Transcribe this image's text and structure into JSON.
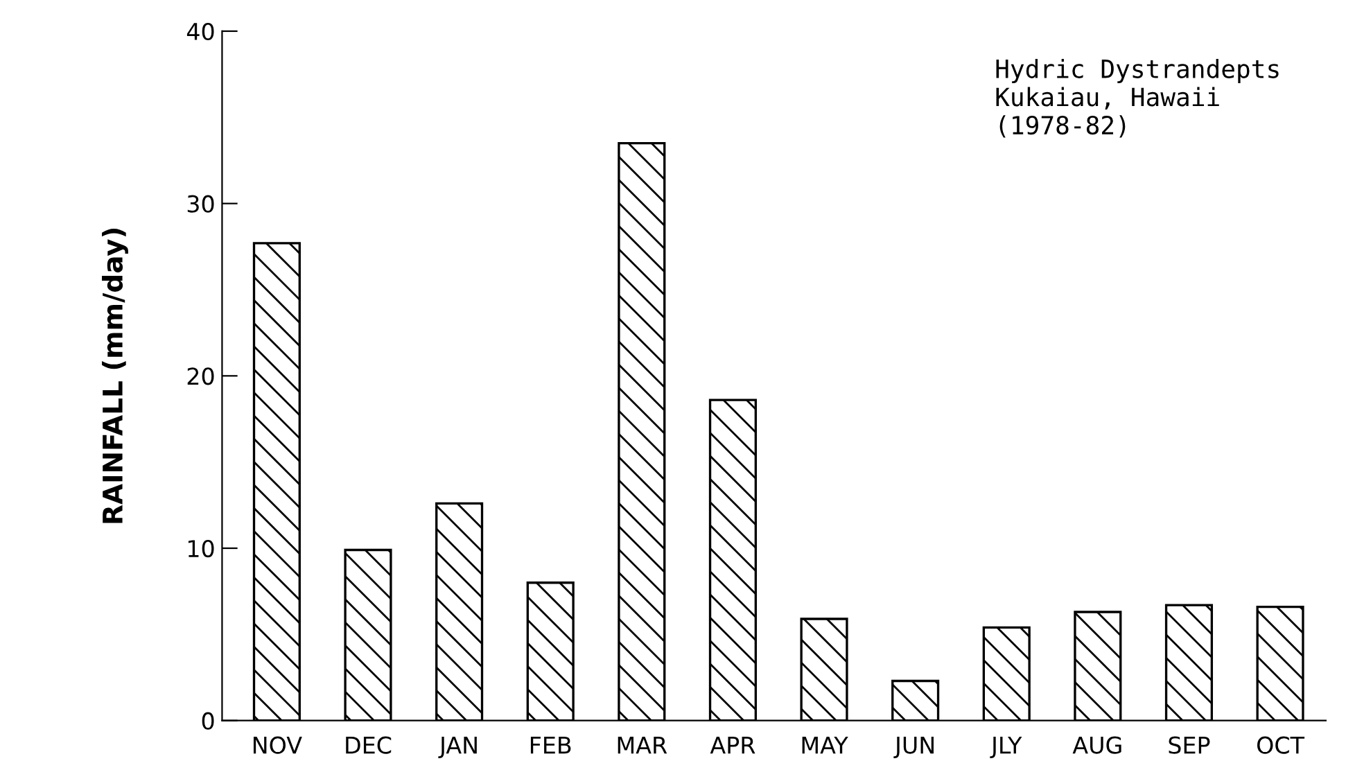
{
  "chart_data": {
    "type": "bar",
    "ylabel": "RAINFALL (mm/day)",
    "categories": [
      "NOV",
      "DEC",
      "JAN",
      "FEB",
      "MAR",
      "APR",
      "MAY",
      "JUN",
      "JLY",
      "AUG",
      "SEP",
      "OCT"
    ],
    "values": [
      27.7,
      9.9,
      12.6,
      8.0,
      33.5,
      18.6,
      5.9,
      2.3,
      5.4,
      6.3,
      6.7,
      6.6
    ],
    "color": "#000000",
    "ylim": [
      0,
      40
    ],
    "yticks": [
      0,
      10,
      20,
      30,
      40
    ],
    "grid": false,
    "annotations": [
      "Hydric Dystrandepts\nKukaiau, Hawaii\n(1978-82)"
    ]
  }
}
